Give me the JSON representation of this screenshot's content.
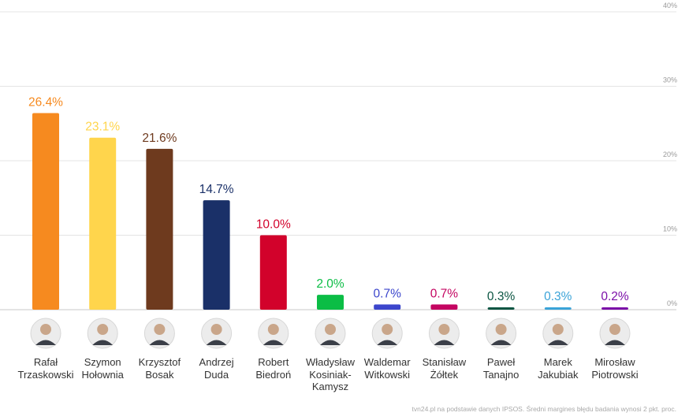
{
  "chart_data": {
    "type": "bar",
    "categories": [
      "Rafał\nTrzaskowski",
      "Szymon\nHołownia",
      "Krzysztof\nBosak",
      "Andrzej\nDuda",
      "Robert\nBiedroń",
      "Władysław\nKosiniak-\nKamysz",
      "Waldemar\nWitkowski",
      "Stanisław\nŻółtek",
      "Paweł\nTanajno",
      "Marek\nJakubiak",
      "Mirosław\nPiotrowski"
    ],
    "values": [
      26.4,
      23.1,
      21.6,
      14.7,
      10.0,
      2.0,
      0.7,
      0.7,
      0.3,
      0.3,
      0.2
    ],
    "value_labels": [
      "26.4%",
      "23.1%",
      "21.6%",
      "14.7%",
      "10.0%",
      "2.0%",
      "0.7%",
      "0.7%",
      "0.3%",
      "0.3%",
      "0.2%"
    ],
    "colors": [
      "#f68a1f",
      "#ffd54c",
      "#6e3a1e",
      "#1a3068",
      "#d2022b",
      "#0bbd45",
      "#3c46cc",
      "#c40561",
      "#0b5542",
      "#3aa3d8",
      "#7b0fa8"
    ],
    "y_ticks": [
      "0%",
      "10%",
      "20%",
      "30%",
      "40%"
    ],
    "ylim": [
      0,
      40
    ],
    "grid": true,
    "source": "tvn24.pl na podstawie danych IPSOS. Średni margines błędu badania wynosi 2 pkt. proc."
  }
}
